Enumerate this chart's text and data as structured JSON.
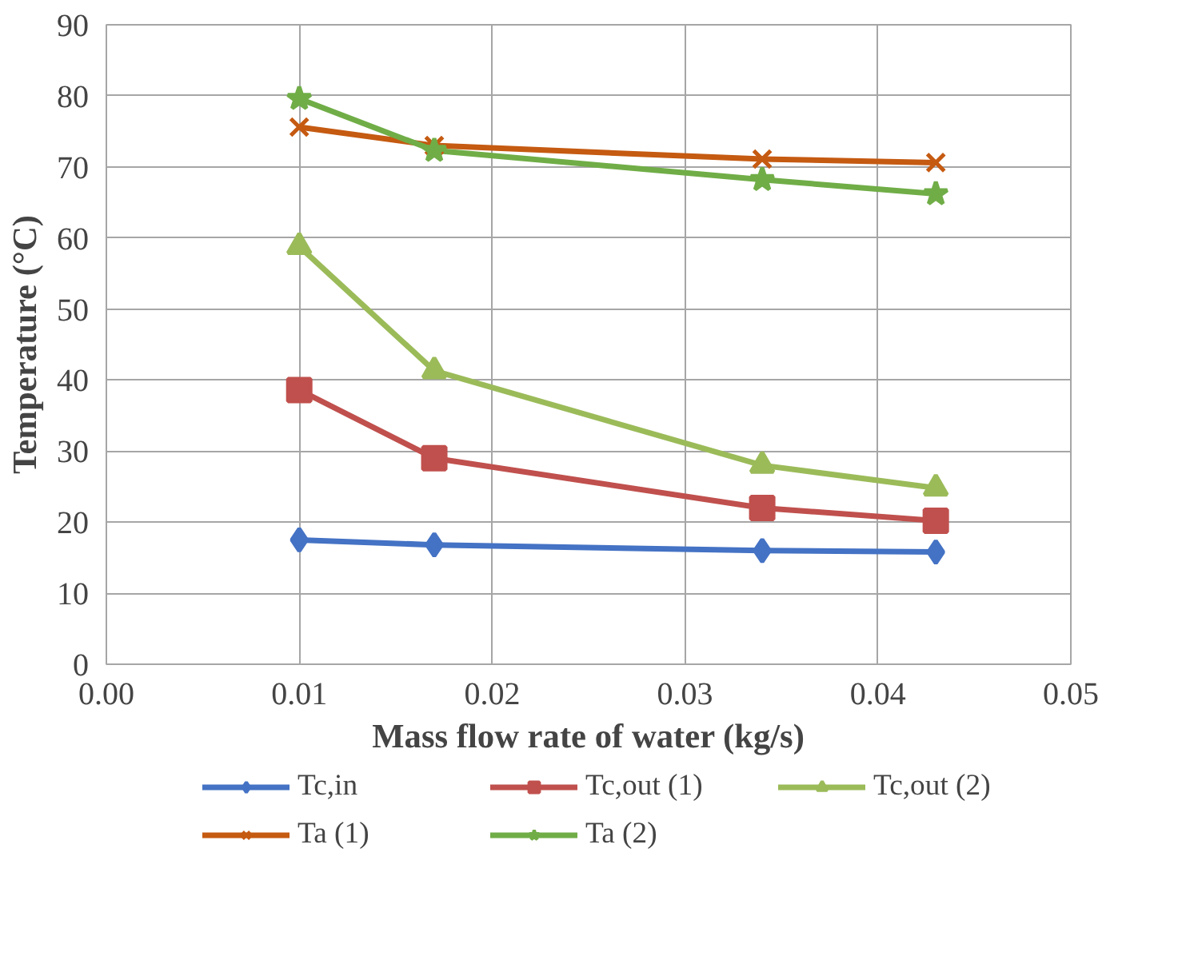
{
  "chart_data": {
    "type": "line",
    "xlabel": "Mass flow rate of water (kg/s)",
    "ylabel": "Temperature (°C)",
    "x": [
      0.01,
      0.017,
      0.034,
      0.043
    ],
    "series": [
      {
        "name": "Tc,in",
        "color": "#4472c4",
        "marker": "diamond",
        "values": [
          17.5,
          16.8,
          16.0,
          15.8
        ]
      },
      {
        "name": "Tc,out (1)",
        "color": "#c0504d",
        "marker": "square",
        "values": [
          38.6,
          29.0,
          22.0,
          20.2
        ]
      },
      {
        "name": "Tc,out (2)",
        "color": "#9bbb59",
        "marker": "triangle",
        "values": [
          58.8,
          41.3,
          28.0,
          24.8
        ]
      },
      {
        "name": "Ta (1)",
        "color": "#c55a11",
        "marker": "cross",
        "values": [
          75.6,
          73.0,
          71.1,
          70.6
        ]
      },
      {
        "name": "Ta (2)",
        "color": "#70ad47",
        "marker": "star",
        "values": [
          79.6,
          72.3,
          68.2,
          66.2
        ]
      }
    ],
    "xlim": [
      0,
      0.05
    ],
    "xticks": [
      {
        "value": 0,
        "label": "0.00"
      },
      {
        "value": 0.01,
        "label": "0.01"
      },
      {
        "value": 0.02,
        "label": "0.02"
      },
      {
        "value": 0.03,
        "label": "0.03"
      },
      {
        "value": 0.04,
        "label": "0.04"
      },
      {
        "value": 0.05,
        "label": "0.05"
      }
    ],
    "ylim": [
      0,
      90
    ],
    "yticks": [
      0,
      10,
      20,
      30,
      40,
      50,
      60,
      70,
      80,
      90
    ],
    "grid": true,
    "legend": "bottom",
    "line_style": "solid"
  }
}
